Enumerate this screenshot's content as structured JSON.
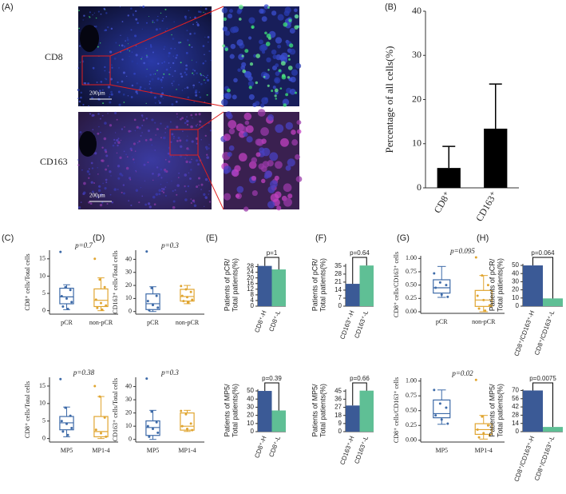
{
  "panel_a": {
    "label": "(A)",
    "rows": [
      {
        "marker": "CD8",
        "scale_bar": "200μm"
      },
      {
        "marker": "CD163",
        "scale_bar": "200μm"
      }
    ]
  },
  "chart_data": [
    {
      "type": "bar",
      "panel": "(B)",
      "ylabel": "Percentage of all cells(%)",
      "categories": [
        "CD8⁺",
        "CD163⁺"
      ],
      "values": [
        4.5,
        13.4
      ],
      "errors": [
        4.9,
        10.1
      ],
      "color": "#000000",
      "ylim": [
        0,
        40
      ],
      "yticks": [
        0,
        10,
        20,
        30,
        40
      ]
    },
    {
      "type": "box",
      "panel": "(C)",
      "annotation": "p=0.7",
      "ylabel": "CD8⁺ cells/Total cells",
      "categories": [
        "pCR",
        "non-pCR"
      ],
      "colors": [
        "#3d6aa8",
        "#e0a530"
      ],
      "boxes": [
        {
          "low": 0.3,
          "q1": 2,
          "median": 4,
          "q3": 6.5,
          "high": 7.5,
          "points": [
            17,
            6.8,
            6,
            4.2,
            3.5,
            2.5,
            1.2,
            0.5
          ]
        },
        {
          "low": 0,
          "q1": 1.2,
          "median": 3,
          "q3": 6.3,
          "high": 9.5,
          "points": [
            15,
            9,
            6.8,
            3.2,
            2.2,
            1.5,
            0.8,
            0.3
          ]
        }
      ],
      "ylim": [
        -1,
        17.5
      ],
      "yticks": [
        0,
        5,
        10,
        15
      ]
    },
    {
      "type": "box",
      "annotation": "p=0.38",
      "ylabel": "CD8⁺ cells/Total cells",
      "categories": [
        "MP5",
        "MP1-4"
      ],
      "colors": [
        "#3d6aa8",
        "#e0a530"
      ],
      "boxes": [
        {
          "low": 0.5,
          "q1": 2.5,
          "median": 4.5,
          "q3": 6.3,
          "high": 9,
          "points": [
            17,
            8.8,
            6.5,
            5,
            4.2,
            3,
            2,
            1
          ]
        },
        {
          "low": 0,
          "q1": 0.5,
          "median": 2,
          "q3": 6.3,
          "high": 12,
          "points": [
            15,
            12,
            6,
            2.5,
            1.5,
            0.5
          ]
        }
      ],
      "ylim": [
        -1,
        17.5
      ],
      "yticks": [
        0,
        5,
        10,
        15
      ]
    },
    {
      "type": "box",
      "panel": "(D)",
      "annotation": "p=0.3",
      "ylabel": "CD163⁺ cells/Total cells",
      "categories": [
        "pCR",
        "non-pCR"
      ],
      "colors": [
        "#3d6aa8",
        "#e0a530"
      ],
      "boxes": [
        {
          "low": 0,
          "q1": 1.5,
          "median": 6,
          "q3": 13.5,
          "high": 19,
          "points": [
            46,
            18,
            12,
            8,
            5,
            3,
            1
          ]
        },
        {
          "low": 6,
          "q1": 8,
          "median": 11.5,
          "q3": 17,
          "high": 20,
          "points": [
            19.5,
            17,
            15,
            12,
            11,
            9,
            8,
            7
          ]
        }
      ],
      "ylim": [
        -2,
        47
      ],
      "yticks": [
        0,
        10,
        20,
        30,
        40
      ]
    },
    {
      "type": "box",
      "annotation": "p=0.3",
      "ylabel": "CD163⁺ cells/Total cells",
      "categories": [
        "MP5",
        "MP1-4"
      ],
      "colors": [
        "#3d6aa8",
        "#e0a530"
      ],
      "boxes": [
        {
          "low": 0,
          "q1": 3,
          "median": 9,
          "q3": 14,
          "high": 22,
          "points": [
            46,
            21,
            13,
            10,
            8,
            5,
            2
          ]
        },
        {
          "low": 6,
          "q1": 7,
          "median": 10,
          "q3": 20,
          "high": 22,
          "points": [
            21.5,
            19,
            12,
            10,
            8,
            7
          ]
        }
      ],
      "ylim": [
        -2,
        47
      ],
      "yticks": [
        0,
        10,
        20,
        30,
        40
      ]
    },
    {
      "type": "bar",
      "panel": "(E)",
      "annotation": "p=1",
      "ylabel": [
        "Patients of pCR/",
        "Total patients(%)"
      ],
      "categories": [
        "CD8⁺-H",
        "CD8⁺-L"
      ],
      "values": [
        28.5,
        26
      ],
      "colors": [
        "#3b5a96",
        "#5fbf95"
      ],
      "ylim": [
        0,
        30
      ],
      "yticks": [
        0,
        4,
        8,
        12,
        16,
        20,
        24,
        28
      ]
    },
    {
      "type": "bar",
      "annotation": "p=0.39",
      "ylabel": [
        "Patients of MP5/",
        "Total patients(%)"
      ],
      "categories": [
        "CD8⁺-H",
        "CD8⁺-L"
      ],
      "values": [
        50,
        26
      ],
      "colors": [
        "#3b5a96",
        "#5fbf95"
      ],
      "ylim": [
        0,
        52
      ],
      "yticks": [
        0,
        10,
        20,
        30,
        40,
        50
      ]
    },
    {
      "type": "bar",
      "panel": "(F)",
      "annotation": "p=0.64",
      "ylabel": [
        "Patients of pCR/",
        "Total patients(%)"
      ],
      "categories": [
        "CD163⁺-H",
        "CD163⁺-L"
      ],
      "values": [
        19.5,
        35.5
      ],
      "colors": [
        "#3b5a96",
        "#5fbf95"
      ],
      "ylim": [
        0,
        37
      ],
      "yticks": [
        0,
        7,
        14,
        21,
        28,
        35
      ]
    },
    {
      "type": "bar",
      "annotation": "p=0.66",
      "ylabel": [
        "Patients of MP5/",
        "Total patients(%)"
      ],
      "categories": [
        "CD163⁺-H",
        "CD163⁺-L"
      ],
      "values": [
        29,
        45.5
      ],
      "colors": [
        "#3b5a96",
        "#5fbf95"
      ],
      "ylim": [
        0,
        47
      ],
      "yticks": [
        0,
        9,
        18,
        27,
        36,
        45
      ]
    },
    {
      "type": "box",
      "panel": "(G)",
      "annotation": "p=0.095",
      "ylabel": "CD8⁺ cells/CD163⁺ cells",
      "categories": [
        "pCR",
        "non-pCR"
      ],
      "colors": [
        "#3d6aa8",
        "#e0a530"
      ],
      "boxes": [
        {
          "low": 0.27,
          "q1": 0.35,
          "median": 0.45,
          "q3": 0.6,
          "high": 0.85,
          "points": [
            0.72,
            0.55,
            0.5,
            0.45,
            0.32,
            0.28
          ]
        },
        {
          "low": 0,
          "q1": 0.1,
          "median": 0.22,
          "q3": 0.4,
          "high": 0.68,
          "points": [
            1.02,
            0.68,
            0.5,
            0.3,
            0.22,
            0.12,
            0.06,
            0.02
          ]
        }
      ],
      "ylim": [
        -0.03,
        1.05
      ],
      "yticks": [
        {
          "value": 0,
          "label": "0.00"
        },
        {
          "value": 0.25,
          "label": "0.25"
        },
        {
          "value": 0.5,
          "label": "0.50"
        },
        {
          "value": 0.75,
          "label": "0.75"
        },
        {
          "value": 1,
          "label": "1.00"
        }
      ]
    },
    {
      "type": "box",
      "annotation": "p=0.02",
      "ylabel": "CD8⁺ cells/CD163⁺ cells",
      "categories": [
        "MP5",
        "MP1-4"
      ],
      "colors": [
        "#3d6aa8",
        "#e0a530"
      ],
      "boxes": [
        {
          "low": 0.27,
          "q1": 0.38,
          "median": 0.45,
          "q3": 0.68,
          "high": 0.85,
          "points": [
            0.85,
            0.62,
            0.55,
            0.42,
            0.35,
            0.28
          ]
        },
        {
          "low": 0.02,
          "q1": 0.1,
          "median": 0.18,
          "q3": 0.28,
          "high": 0.42,
          "points": [
            1.02,
            0.4,
            0.25,
            0.18,
            0.12,
            0.08,
            0.05
          ]
        }
      ],
      "ylim": [
        -0.03,
        1.05
      ],
      "yticks": [
        {
          "value": 0,
          "label": "0.00"
        },
        {
          "value": 0.25,
          "label": "0.25"
        },
        {
          "value": 0.5,
          "label": "0.50"
        },
        {
          "value": 0.75,
          "label": "0.75"
        },
        {
          "value": 1,
          "label": "1.00"
        }
      ]
    },
    {
      "type": "bar",
      "panel": "(H)",
      "annotation": "p=0.064",
      "ylabel": [
        "Patients of pCR/",
        "Total patients(%)"
      ],
      "categories": [
        "CD8⁺/CD163⁺-H",
        "CD8⁺/CD163⁺-L"
      ],
      "values": [
        50,
        9.5
      ],
      "colors": [
        "#3b5a96",
        "#5fbf95"
      ],
      "ylim": [
        0,
        52
      ],
      "yticks": [
        0,
        10,
        20,
        30,
        40,
        50
      ]
    },
    {
      "type": "bar",
      "annotation": "p=0.0075",
      "ylabel": [
        "Patients of MP5/",
        "Total patients(%)"
      ],
      "categories": [
        "CD8⁺/CD163⁺-H",
        "CD8⁺/CD163⁺-L"
      ],
      "values": [
        70,
        8
      ],
      "colors": [
        "#3b5a96",
        "#5fbf95"
      ],
      "ylim": [
        0,
        72
      ],
      "yticks": [
        0,
        14,
        28,
        42,
        56,
        70
      ]
    }
  ]
}
